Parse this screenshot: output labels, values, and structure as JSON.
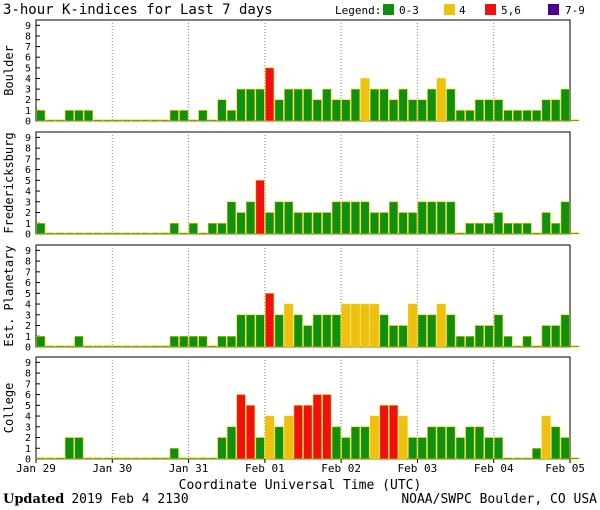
{
  "chart_data": {
    "type": "bar",
    "title": "3-hour K-indices for Last 7 days",
    "legend": {
      "label": "Legend:",
      "placement": "top-right",
      "entries": [
        {
          "label": "0-3",
          "color": "#109010"
        },
        {
          "label": "4",
          "color": "#f0c010"
        },
        {
          "label": "5,6",
          "color": "#f01010"
        },
        {
          "label": "7-9",
          "color": "#500090"
        }
      ]
    },
    "xlabel": "Coordinate Universal Time (UTC)",
    "x_ticks": [
      "Jan 29",
      "Jan 30",
      "Jan 31",
      "Feb 01",
      "Feb 02",
      "Feb 03",
      "Feb 04",
      "Feb 05"
    ],
    "intervals_per_day": 8,
    "ylim": [
      0,
      9
    ],
    "y_ticks": [
      "0",
      "1",
      "2",
      "3",
      "4",
      "5",
      "6",
      "7",
      "8",
      "9"
    ],
    "grid": true,
    "series": [
      {
        "name": "Boulder",
        "values": [
          1,
          0,
          0,
          1,
          1,
          1,
          0,
          0,
          0,
          0,
          0,
          0,
          0,
          0,
          1,
          1,
          0,
          1,
          0,
          2,
          1,
          3,
          3,
          3,
          5,
          2,
          3,
          3,
          3,
          2,
          3,
          2,
          2,
          3,
          4,
          3,
          3,
          2,
          3,
          2,
          2,
          3,
          4,
          3,
          1,
          1,
          2,
          2,
          2,
          1,
          1,
          1,
          1,
          2,
          2,
          3,
          0
        ]
      },
      {
        "name": "Fredericksburg",
        "values": [
          1,
          0,
          0,
          0,
          0,
          0,
          0,
          0,
          0,
          0,
          0,
          0,
          0,
          0,
          1,
          0,
          1,
          0,
          1,
          1,
          3,
          2,
          3,
          5,
          2,
          3,
          3,
          2,
          2,
          2,
          2,
          3,
          3,
          3,
          3,
          2,
          2,
          3,
          2,
          2,
          3,
          3,
          3,
          3,
          0,
          1,
          1,
          1,
          2,
          1,
          1,
          1,
          0,
          2,
          1,
          3,
          0
        ]
      },
      {
        "name": "Est. Planetary",
        "values": [
          1,
          0,
          0,
          0,
          1,
          0,
          0,
          0,
          0,
          0,
          0,
          0,
          0,
          0,
          1,
          1,
          1,
          1,
          0,
          1,
          1,
          3,
          3,
          3,
          5,
          3,
          4,
          3,
          2,
          3,
          3,
          3,
          4,
          4,
          4,
          4,
          3,
          2,
          2,
          4,
          3,
          3,
          4,
          3,
          1,
          1,
          2,
          2,
          3,
          1,
          0,
          1,
          0,
          2,
          2,
          3,
          0
        ]
      },
      {
        "name": "College",
        "values": [
          0,
          0,
          0,
          2,
          2,
          0,
          0,
          0,
          0,
          0,
          0,
          0,
          0,
          0,
          1,
          0,
          0,
          0,
          0,
          2,
          3,
          6,
          5,
          2,
          4,
          3,
          4,
          5,
          5,
          6,
          6,
          3,
          2,
          3,
          3,
          4,
          5,
          5,
          4,
          2,
          2,
          3,
          3,
          3,
          2,
          3,
          3,
          2,
          2,
          0,
          0,
          0,
          1,
          4,
          3,
          2,
          0
        ]
      }
    ]
  },
  "footer": {
    "updated_label": "Updated",
    "updated_value": "2019 Feb  4 2130",
    "credit": "NOAA/SWPC Boulder, CO USA"
  }
}
